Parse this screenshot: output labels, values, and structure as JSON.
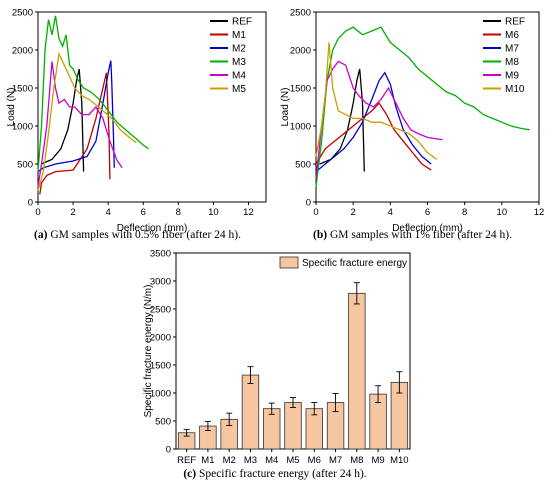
{
  "captions": [
    {
      "label": "(a)",
      "text": " GM samples with 0.5% fiber (after 24 h)."
    },
    {
      "label": "(b)",
      "text": " GM samples with 1% fiber (after 24 h)."
    },
    {
      "label": "(c)",
      "text": " Specific fracture energy (after 24 h)."
    }
  ],
  "chart_data": [
    {
      "type": "line",
      "xlabel": "Deflection (mm)",
      "ylabel": "Load (N)",
      "xlim": [
        0,
        13
      ],
      "ylim": [
        0,
        2500
      ],
      "x_ticks": [
        0,
        2,
        4,
        6,
        8,
        10,
        12
      ],
      "y_ticks": [
        0,
        500,
        1000,
        1500,
        2000,
        2500
      ],
      "grid": false,
      "legend": "top-right",
      "series": [
        {
          "name": "REF",
          "color": "#000000",
          "x": [
            0.2,
            0.8,
            1.3,
            1.7,
            2.0,
            2.2,
            2.35,
            2.5,
            2.6
          ],
          "y": [
            500,
            560,
            700,
            950,
            1300,
            1600,
            1750,
            1300,
            400
          ]
        },
        {
          "name": "M1",
          "color": "#c00000",
          "x": [
            0.1,
            0.2,
            0.5,
            1.0,
            2.0,
            2.8,
            3.3,
            3.7,
            3.9,
            4.05,
            4.1
          ],
          "y": [
            100,
            250,
            350,
            400,
            420,
            700,
            1100,
            1500,
            1700,
            900,
            300
          ]
        },
        {
          "name": "M2",
          "color": "#0000cc",
          "x": [
            0.0,
            0.3,
            1.0,
            2.0,
            2.8,
            3.3,
            3.7,
            4.0,
            4.15,
            4.2,
            4.3,
            4.35
          ],
          "y": [
            400,
            450,
            500,
            540,
            600,
            800,
            1300,
            1700,
            1860,
            1600,
            900,
            450
          ]
        },
        {
          "name": "M3",
          "color": "#00b000",
          "x": [
            0.0,
            0.2,
            0.4,
            0.6,
            0.8,
            1.0,
            1.2,
            1.4,
            1.6,
            1.8,
            2.0,
            2.3,
            2.6,
            3.0,
            3.5,
            4.0,
            4.5,
            5.0,
            5.5,
            6.0,
            6.3
          ],
          "y": [
            400,
            1000,
            2000,
            2400,
            2200,
            2450,
            2150,
            2050,
            2200,
            1800,
            1750,
            1600,
            1500,
            1450,
            1350,
            1200,
            1050,
            950,
            850,
            750,
            700
          ]
        },
        {
          "name": "M4",
          "color": "#cc00cc",
          "x": [
            0.0,
            0.2,
            0.5,
            0.8,
            1.0,
            1.2,
            1.5,
            1.8,
            2.1,
            2.5,
            2.9,
            3.3,
            3.7,
            4.1,
            4.5,
            4.8
          ],
          "y": [
            200,
            500,
            1000,
            1850,
            1500,
            1300,
            1350,
            1250,
            1250,
            1150,
            1150,
            1250,
            1100,
            800,
            550,
            450
          ]
        },
        {
          "name": "M5",
          "color": "#c8a000",
          "x": [
            0.0,
            0.3,
            0.6,
            0.9,
            1.2,
            1.5,
            1.8,
            2.1,
            2.5,
            2.9,
            3.3,
            3.7,
            4.2,
            4.7,
            5.2,
            5.6
          ],
          "y": [
            150,
            400,
            900,
            1500,
            1950,
            1800,
            1650,
            1500,
            1400,
            1350,
            1280,
            1200,
            1100,
            950,
            850,
            780
          ]
        }
      ]
    },
    {
      "type": "line",
      "xlabel": "Deflection (mm)",
      "ylabel": "Load (N)",
      "xlim": [
        0,
        12
      ],
      "ylim": [
        0,
        2500
      ],
      "x_ticks": [
        0,
        2,
        4,
        6,
        8,
        10,
        12
      ],
      "y_ticks": [
        0,
        500,
        1000,
        1500,
        2000,
        2500
      ],
      "grid": false,
      "legend": "top-right",
      "series": [
        {
          "name": "REF",
          "color": "#000000",
          "x": [
            0.2,
            0.8,
            1.3,
            1.7,
            2.0,
            2.2,
            2.35,
            2.5,
            2.6
          ],
          "y": [
            500,
            560,
            700,
            950,
            1300,
            1600,
            1750,
            1300,
            400
          ]
        },
        {
          "name": "M6",
          "color": "#c00000",
          "x": [
            0.0,
            0.5,
            1.5,
            2.5,
            3.0,
            3.4,
            3.8,
            4.2,
            4.7,
            5.2,
            5.7,
            6.2
          ],
          "y": [
            500,
            700,
            900,
            1100,
            1200,
            1300,
            1150,
            950,
            800,
            650,
            500,
            420
          ]
        },
        {
          "name": "M7",
          "color": "#0000cc",
          "x": [
            0.0,
            0.5,
            1.0,
            1.5,
            2.0,
            2.5,
            3.0,
            3.4,
            3.7,
            4.0,
            4.3,
            4.7,
            5.2,
            5.7,
            6.2
          ],
          "y": [
            400,
            500,
            600,
            700,
            850,
            1050,
            1350,
            1600,
            1700,
            1550,
            1250,
            950,
            750,
            600,
            500
          ]
        },
        {
          "name": "M8",
          "color": "#00b000",
          "x": [
            0.0,
            0.3,
            0.6,
            0.9,
            1.2,
            1.6,
            2.0,
            2.5,
            3.0,
            3.5,
            4.0,
            4.5,
            5.0,
            5.5,
            6.0,
            6.5,
            7.0,
            7.5,
            8.0,
            8.5,
            9.0,
            9.5,
            10.0,
            10.5,
            11.0,
            11.5
          ],
          "y": [
            200,
            800,
            1600,
            2000,
            2150,
            2250,
            2300,
            2200,
            2250,
            2300,
            2100,
            2000,
            1900,
            1750,
            1650,
            1550,
            1450,
            1400,
            1300,
            1250,
            1150,
            1100,
            1050,
            1000,
            970,
            950
          ]
        },
        {
          "name": "M9",
          "color": "#cc00cc",
          "x": [
            0.0,
            0.3,
            0.6,
            0.9,
            1.2,
            1.6,
            2.0,
            2.3,
            2.7,
            3.1,
            3.5,
            3.9,
            4.3,
            4.7,
            5.1,
            5.5,
            6.0,
            6.5,
            6.8
          ],
          "y": [
            300,
            1000,
            1600,
            1750,
            1850,
            1800,
            1500,
            1400,
            1300,
            1250,
            1350,
            1500,
            1300,
            1100,
            950,
            900,
            850,
            830,
            820
          ]
        },
        {
          "name": "M10",
          "color": "#c8a000",
          "x": [
            0.0,
            0.3,
            0.5,
            0.7,
            0.9,
            1.2,
            1.6,
            2.0,
            2.5,
            3.0,
            3.5,
            4.0,
            4.5,
            5.0,
            5.5,
            6.0,
            6.5
          ],
          "y": [
            600,
            1000,
            1400,
            2100,
            1500,
            1200,
            1150,
            1100,
            1100,
            1050,
            1050,
            1000,
            950,
            900,
            800,
            650,
            560
          ]
        }
      ]
    },
    {
      "type": "bar",
      "ylabel": "Specific fracture energy (N/m)",
      "ylim": [
        0,
        3500
      ],
      "y_ticks": [
        0,
        500,
        1000,
        1500,
        2000,
        2500,
        3000,
        3500
      ],
      "grid": false,
      "legend": "top-right",
      "categories": [
        "REF",
        "M1",
        "M2",
        "M3",
        "M4",
        "M5",
        "M6",
        "M7",
        "M8",
        "M9",
        "M10"
      ],
      "series": [
        {
          "name": "Specific fracture energy",
          "color": "#f5c6a0",
          "values": [
            290,
            410,
            530,
            1320,
            720,
            830,
            720,
            830,
            2780,
            980,
            1190
          ],
          "errors": [
            60,
            80,
            110,
            150,
            100,
            90,
            110,
            160,
            190,
            150,
            190
          ]
        }
      ]
    }
  ]
}
